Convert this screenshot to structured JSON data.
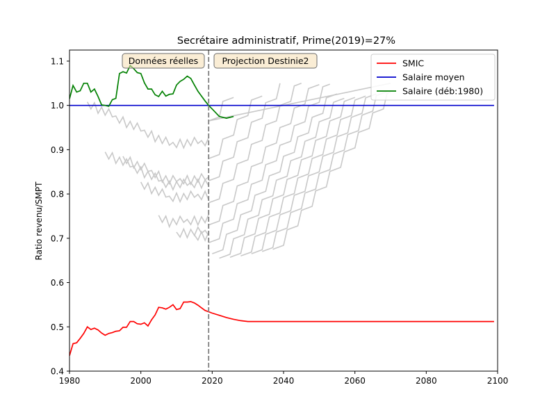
{
  "chart_data": {
    "type": "line",
    "title": "Secrétaire administratif, Prime(2019)=27%",
    "xlabel": "",
    "ylabel": "Ratio revenu/SMPT",
    "xlim": [
      1980,
      2100
    ],
    "ylim": [
      0.4,
      1.125
    ],
    "xticks": [
      1980,
      2000,
      2020,
      2040,
      2060,
      2080,
      2100
    ],
    "yticks": [
      0.4,
      0.5,
      0.6,
      0.7,
      0.8,
      0.9,
      1.0,
      1.1
    ],
    "grid": false,
    "legend_position": "top-right",
    "annotations": {
      "left_box": "Données réelles",
      "right_box": "Projection Destinie2",
      "separator_x": 2019
    },
    "series": [
      {
        "name": "SMIC",
        "color": "#ff0000",
        "x": [
          1980,
          1981,
          1982,
          1983,
          1984,
          1985,
          1986,
          1987,
          1988,
          1989,
          1990,
          1991,
          1992,
          1993,
          1994,
          1995,
          1996,
          1997,
          1998,
          1999,
          2000,
          2001,
          2002,
          2003,
          2004,
          2005,
          2006,
          2007,
          2008,
          2009,
          2010,
          2011,
          2012,
          2013,
          2014,
          2015,
          2016,
          2017,
          2018,
          2019,
          2020,
          2022,
          2024,
          2026,
          2028,
          2030,
          2040,
          2060,
          2080,
          2099
        ],
        "y": [
          0.435,
          0.462,
          0.464,
          0.474,
          0.485,
          0.5,
          0.494,
          0.497,
          0.493,
          0.486,
          0.481,
          0.485,
          0.487,
          0.49,
          0.491,
          0.499,
          0.499,
          0.512,
          0.512,
          0.507,
          0.506,
          0.509,
          0.502,
          0.516,
          0.527,
          0.544,
          0.543,
          0.54,
          0.544,
          0.55,
          0.539,
          0.541,
          0.556,
          0.556,
          0.557,
          0.554,
          0.549,
          0.543,
          0.537,
          0.534,
          0.531,
          0.526,
          0.521,
          0.517,
          0.514,
          0.512,
          0.512,
          0.512,
          0.512,
          0.512
        ]
      },
      {
        "name": "Salaire moyen",
        "color": "#0000cc",
        "x": [
          1980,
          2099
        ],
        "y": [
          1.0,
          1.0
        ]
      },
      {
        "name": "Salaire (déb:1980)",
        "color": "#008000",
        "x": [
          1980,
          1981,
          1982,
          1983,
          1984,
          1985,
          1986,
          1987,
          1988,
          1989,
          1990,
          1991,
          1992,
          1993,
          1994,
          1995,
          1996,
          1997,
          1998,
          1999,
          2000,
          2001,
          2002,
          2003,
          2004,
          2005,
          2006,
          2007,
          2008,
          2009,
          2010,
          2011,
          2012,
          2013,
          2014,
          2015,
          2016,
          2017,
          2018,
          2019,
          2020,
          2022,
          2024,
          2026
        ],
        "y": [
          1.015,
          1.045,
          1.03,
          1.033,
          1.05,
          1.05,
          1.03,
          1.037,
          1.02,
          1.001,
          1.0,
          0.998,
          1.013,
          1.016,
          1.072,
          1.076,
          1.073,
          1.09,
          1.083,
          1.074,
          1.072,
          1.051,
          1.037,
          1.037,
          1.024,
          1.02,
          1.032,
          1.021,
          1.025,
          1.026,
          1.046,
          1.054,
          1.059,
          1.066,
          1.061,
          1.046,
          1.032,
          1.021,
          1.01,
          1.0,
          0.992,
          0.975,
          0.971,
          0.975
        ]
      }
    ],
    "background_curves": {
      "color": "#c8c8c8",
      "count": 20
    }
  }
}
